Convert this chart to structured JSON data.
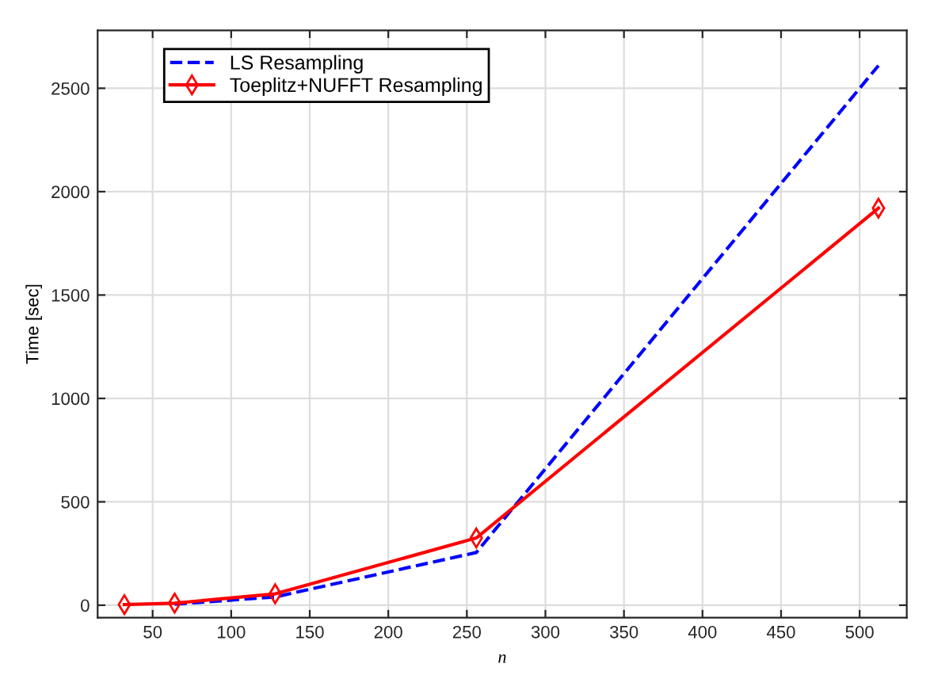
{
  "chart_data": {
    "type": "line",
    "xlabel": "n",
    "ylabel": "Time [sec]",
    "x": [
      32,
      64,
      128,
      256,
      512
    ],
    "series": [
      {
        "name": "LS Resampling",
        "color": "#0000ff",
        "line_style": "dashed",
        "marker": "none",
        "values": [
          null,
          5,
          40,
          255,
          2610
        ]
      },
      {
        "name": "Toeplitz+NUFFT Resampling",
        "color": "#ff0000",
        "line_style": "solid",
        "marker": "diamond",
        "values": [
          3,
          10,
          55,
          325,
          1920
        ]
      }
    ],
    "xlim": [
      15,
      530
    ],
    "xticks": [
      50,
      100,
      150,
      200,
      250,
      300,
      350,
      400,
      450,
      500
    ],
    "ylim": [
      -60,
      2780
    ],
    "yticks": [
      0,
      500,
      1000,
      1500,
      2000,
      2500
    ],
    "grid": true,
    "legend": "top left"
  }
}
